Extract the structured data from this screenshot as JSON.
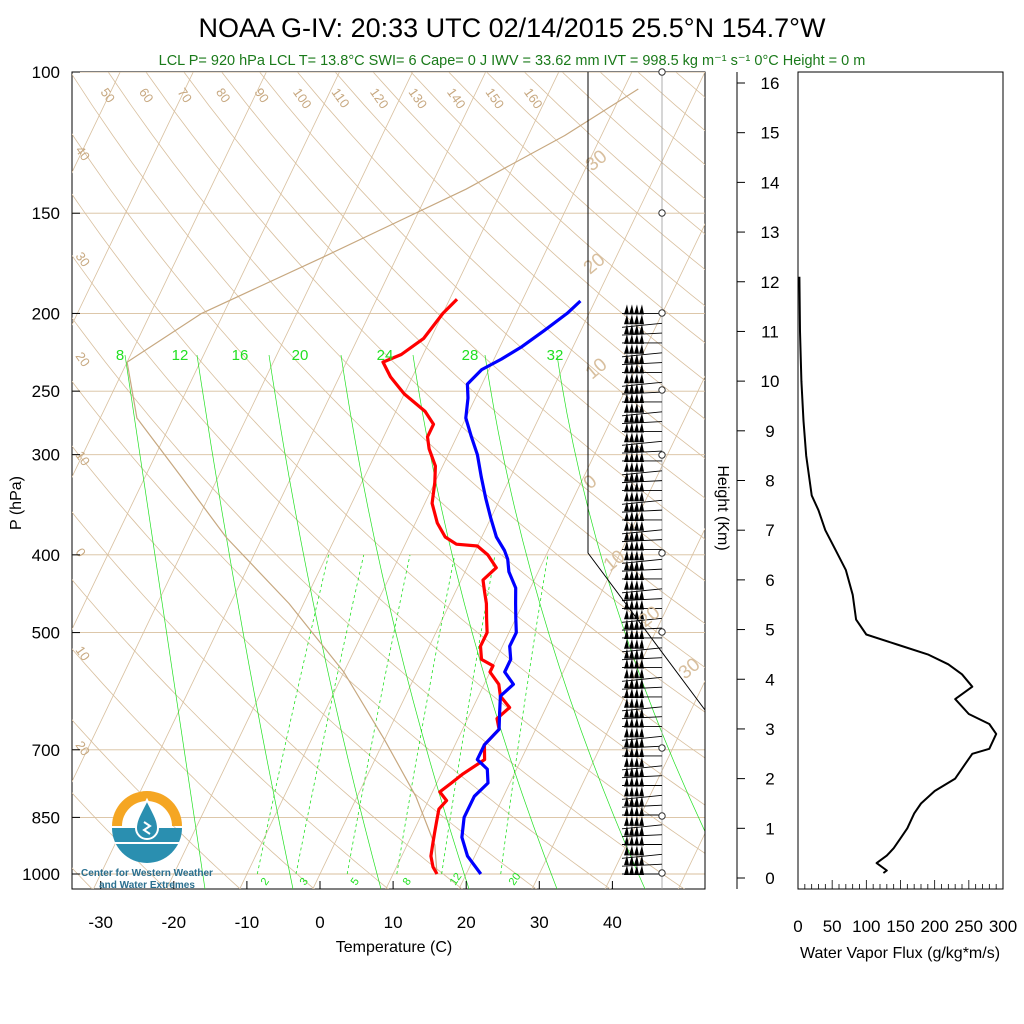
{
  "title": "NOAA G-IV: 20:33 UTC 02/14/2015  25.5°N 154.7°W",
  "subtitle": "LCL P= 920 hPa  LCL T= 13.8°C  SWI= 6  Cape= 0 J  IWV = 33.62 mm  IVT = 998.5 kg m⁻¹ s⁻¹  0°C Height = 0 m",
  "logo": {
    "line1": "Center for Western Weather",
    "line2": "and Water Extremes",
    "colors": {
      "sun": "#f5a623",
      "water": "#2a8fb0",
      "drop": "#2a8fb0"
    }
  },
  "colors": {
    "temperature": "#ff0000",
    "dewpoint": "#0000ff",
    "isotherm": "#d8bf9e",
    "mixing_ratio": "#22e022",
    "parcel": "#c7a880",
    "wind": "#000000",
    "flux": "#000000"
  },
  "chart_data": [
    {
      "type": "line",
      "name": "skew-t sounding",
      "xlabel": "Temperature (C)",
      "ylabel": "P (hPa)",
      "x_ticks": [
        "-30",
        "-20",
        "-10",
        "0",
        "10",
        "20",
        "30",
        "40"
      ],
      "y_ticks": [
        "100",
        "150",
        "200",
        "250",
        "300",
        "400",
        "500",
        "700",
        "850",
        "1000"
      ],
      "y_scale": "log",
      "ylim": [
        1000,
        100
      ],
      "upper_adiabat_labels": [
        "50",
        "60",
        "70",
        "80",
        "90",
        "100",
        "110",
        "120",
        "130",
        "140",
        "150",
        "160"
      ],
      "left_adiabat_labels": [
        "40",
        "30",
        "20",
        "10",
        "0",
        "10",
        "20"
      ],
      "right_labels": [
        "30",
        "20",
        "10",
        "0",
        "10",
        "20",
        "30"
      ],
      "mixing_ratio_top_labels": [
        "8",
        "12",
        "16",
        "20",
        "24",
        "28",
        "32"
      ],
      "mixing_ratio_bottom_labels": [
        "2",
        "3",
        "5",
        "8",
        "12",
        "20"
      ],
      "series": [
        {
          "points": [
            [
              16,
              1000
            ],
            [
              15,
              980
            ],
            [
              14,
              950
            ],
            [
              13.5,
              920
            ],
            [
              13,
              890
            ],
            [
              12.5,
              860
            ],
            [
              12,
              830
            ],
            [
              12.5,
              810
            ],
            [
              11,
              790
            ],
            [
              12,
              770
            ],
            [
              13,
              750
            ],
            [
              15,
              720
            ],
            [
              14,
              690
            ],
            [
              15,
              660
            ],
            [
              14,
              640
            ],
            [
              15,
              620
            ],
            [
              13,
              600
            ],
            [
              12,
              580
            ],
            [
              10,
              560
            ],
            [
              10,
              550
            ],
            [
              8,
              540
            ],
            [
              7,
              520
            ],
            [
              7,
              500
            ],
            [
              6,
              480
            ],
            [
              5,
              460
            ],
            [
              4,
              445
            ],
            [
              3,
              430
            ],
            [
              4,
              415
            ],
            [
              2,
              400
            ],
            [
              0,
              390
            ],
            [
              -3,
              388
            ],
            [
              -5,
              380
            ],
            [
              -7,
              365
            ],
            [
              -9,
              345
            ],
            [
              -10,
              325
            ],
            [
              -11,
              310
            ],
            [
              -13,
              295
            ],
            [
              -14,
              285
            ],
            [
              -14,
              275
            ],
            [
              -16,
              265
            ],
            [
              -20,
              252
            ],
            [
              -23,
              240
            ],
            [
              -25,
              230
            ],
            [
              -23,
              225
            ],
            [
              -21,
              215
            ],
            [
              -20,
              200
            ],
            [
              -19,
              192
            ]
          ]
        },
        {
          "points": [
            [
              22,
              1000
            ],
            [
              19,
              950
            ],
            [
              17,
              900
            ],
            [
              16,
              850
            ],
            [
              16,
              800
            ],
            [
              17,
              770
            ],
            [
              16,
              740
            ],
            [
              14,
              720
            ],
            [
              14,
              690
            ],
            [
              15,
              660
            ],
            [
              14,
              630
            ],
            [
              13,
              600
            ],
            [
              14,
              580
            ],
            [
              12,
              560
            ],
            [
              12,
              540
            ],
            [
              11,
              520
            ],
            [
              11,
              500
            ],
            [
              10,
              480
            ],
            [
              9,
              460
            ],
            [
              8,
              440
            ],
            [
              6,
              420
            ],
            [
              5,
              405
            ],
            [
              4,
              395
            ],
            [
              2,
              380
            ],
            [
              0,
              360
            ],
            [
              -2,
              340
            ],
            [
              -4,
              320
            ],
            [
              -6,
              300
            ],
            [
              -8,
              285
            ],
            [
              -10,
              270
            ],
            [
              -11,
              255
            ],
            [
              -12,
              245
            ],
            [
              -11,
              235
            ],
            [
              -9,
              228
            ],
            [
              -7,
              220
            ],
            [
              -5,
              210
            ],
            [
              -3,
              200
            ],
            [
              -2,
              193
            ]
          ]
        },
        {
          "points": [
            [
              16,
              1000
            ],
            [
              13.8,
              920
            ],
            [
              8,
              800
            ],
            [
              0,
              680
            ],
            [
              -10,
              560
            ],
            [
              -22,
              460
            ],
            [
              -35,
              380
            ],
            [
              -45,
              320
            ],
            [
              -55,
              270
            ],
            [
              -60,
              230
            ],
            [
              -53,
              200
            ],
            [
              -40,
              170
            ],
            [
              -25,
              140
            ],
            [
              -15,
              120
            ],
            [
              -8,
              105
            ]
          ]
        }
      ],
      "wind_barbs": {
        "axis": "wind",
        "pressure_range": [
          1000,
          200
        ],
        "count": 58
      }
    },
    {
      "type": "line",
      "name": "water vapor flux profile",
      "xlabel": "Water Vapor Flux (g/kg*m/s)",
      "ylabel": "Height (Km)",
      "x_ticks": [
        "0",
        "50",
        "100",
        "150",
        "200",
        "250",
        "300"
      ],
      "xlim": [
        0,
        300
      ],
      "y_ticks": [
        "0",
        "1",
        "2",
        "3",
        "4",
        "5",
        "6",
        "7",
        "8",
        "9",
        "10",
        "11",
        "12",
        "13",
        "14",
        "15",
        "16"
      ],
      "ylim": [
        0,
        16.3
      ],
      "series": [
        {
          "points": [
            [
              125,
              0.1
            ],
            [
              130,
              0.15
            ],
            [
              115,
              0.3
            ],
            [
              130,
              0.45
            ],
            [
              140,
              0.6
            ],
            [
              150,
              0.8
            ],
            [
              160,
              1.0
            ],
            [
              170,
              1.3
            ],
            [
              180,
              1.5
            ],
            [
              200,
              1.75
            ],
            [
              230,
              2.0
            ],
            [
              245,
              2.3
            ],
            [
              255,
              2.5
            ],
            [
              280,
              2.6
            ],
            [
              290,
              2.9
            ],
            [
              280,
              3.1
            ],
            [
              250,
              3.3
            ],
            [
              230,
              3.6
            ],
            [
              255,
              3.85
            ],
            [
              240,
              4.1
            ],
            [
              220,
              4.3
            ],
            [
              190,
              4.5
            ],
            [
              145,
              4.7
            ],
            [
              100,
              4.9
            ],
            [
              85,
              5.2
            ],
            [
              80,
              5.7
            ],
            [
              70,
              6.2
            ],
            [
              55,
              6.6
            ],
            [
              40,
              7.0
            ],
            [
              30,
              7.4
            ],
            [
              20,
              7.7
            ],
            [
              12,
              8.5
            ],
            [
              8,
              9.2
            ],
            [
              5,
              10
            ],
            [
              3,
              11
            ],
            [
              2,
              12.1
            ]
          ]
        }
      ]
    }
  ]
}
